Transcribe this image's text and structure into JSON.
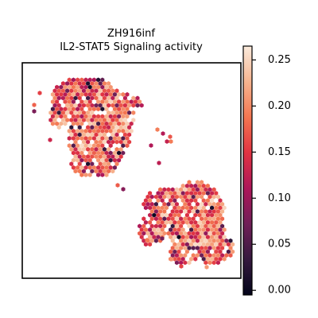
{
  "chart_data": {
    "type": "scatter",
    "title_lines": [
      "ZH916inf",
      "IL2-STAT5 Signaling activity"
    ],
    "xlabel": "",
    "ylabel": "",
    "x_ticks": false,
    "y_ticks": false,
    "grid": false,
    "colormap": "rocket",
    "colorbar": {
      "range": [
        -0.005,
        0.265
      ],
      "ticks": [
        0.0,
        0.05,
        0.1,
        0.15,
        0.2,
        0.25
      ],
      "tick_labels": [
        "0.00",
        "0.05",
        "0.10",
        "0.15",
        "0.20",
        "0.25"
      ],
      "stops": [
        "#03051a",
        "#35193e",
        "#701f57",
        "#ad1759",
        "#e13342",
        "#f37651",
        "#f6b48f",
        "#faebdd"
      ]
    },
    "point_shape": "hexagon",
    "point_value_range": [
      0.0,
      0.26
    ],
    "clusters": [
      {
        "name": "upper-left",
        "value_mean": 0.19
      },
      {
        "name": "lower-right",
        "value_mean": 0.19
      }
    ]
  }
}
